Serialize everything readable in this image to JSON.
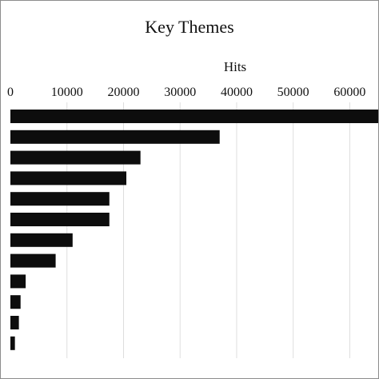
{
  "chart_data": {
    "type": "bar",
    "orientation": "horizontal",
    "title": "Key Themes",
    "xlabel": "Hits",
    "ylabel": "",
    "xlim": [
      0,
      64000
    ],
    "x_ticks": [
      0,
      10000,
      20000,
      30000,
      40000,
      50000,
      60000
    ],
    "x_tick_labels": [
      "0",
      "10000",
      "20000",
      "30000",
      "40000",
      "50000",
      "60000"
    ],
    "x_axis_position": "top",
    "grid": "vertical",
    "legend": "none",
    "categories": [
      "",
      "",
      "",
      "",
      "",
      "",
      "",
      "",
      "",
      "",
      "",
      ""
    ],
    "values": [
      65500,
      37000,
      23000,
      20500,
      17500,
      17500,
      11000,
      8000,
      2700,
      1800,
      1500,
      800
    ],
    "bar_color": "#0d0d0d",
    "grid_color": "#dedede"
  }
}
